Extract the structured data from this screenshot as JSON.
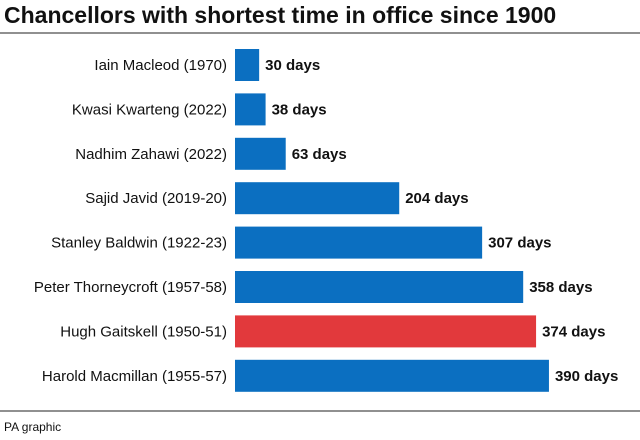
{
  "chart_data": {
    "type": "bar",
    "orientation": "horizontal",
    "title": "Chancellors with shortest time in office since 1900",
    "categories": [
      "Iain Macleod (1970)",
      "Kwasi Kwarteng (2022)",
      "Nadhim Zahawi (2022)",
      "Sajid Javid (2019-20)",
      "Stanley Baldwin (1922-23)",
      "Peter Thorneycroft (1957-58)",
      "Hugh Gaitskell (1950-51)",
      "Harold Macmillan (1955-57)"
    ],
    "values": [
      30,
      38,
      63,
      204,
      307,
      358,
      374,
      390
    ],
    "value_labels": [
      "30 days",
      "38 days",
      "63 days",
      "204 days",
      "307 days",
      "358 days",
      "374 days",
      "390 days"
    ],
    "colors": [
      "#0b6fc1",
      "#0b6fc1",
      "#0b6fc1",
      "#0b6fc1",
      "#0b6fc1",
      "#0b6fc1",
      "#e2393c",
      "#0b6fc1"
    ],
    "source": "PA graphic"
  }
}
